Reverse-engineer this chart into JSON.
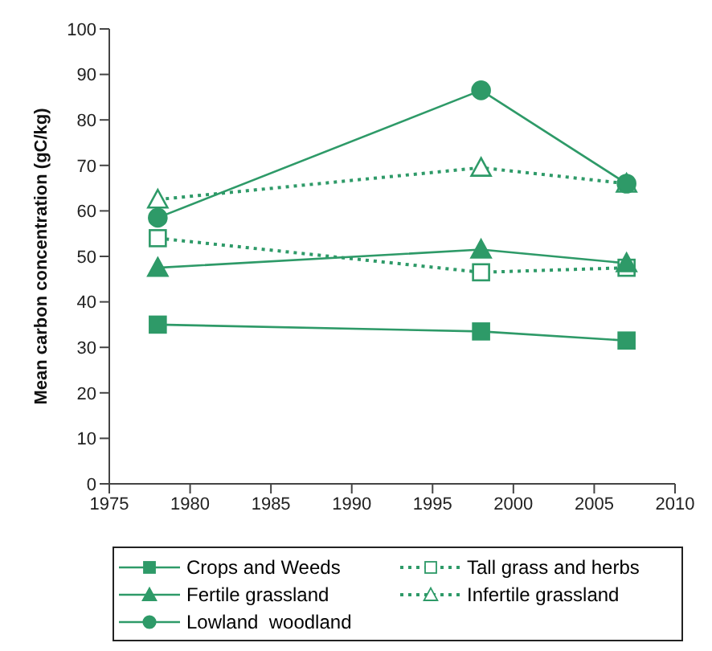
{
  "chart_data": {
    "type": "line",
    "ylabel": "Mean carbon concentration (gC/kg)",
    "x": [
      1978,
      1998,
      2007
    ],
    "xlim": [
      1975,
      2010
    ],
    "xticks": [
      1975,
      1980,
      1985,
      1990,
      1995,
      2000,
      2005,
      2010
    ],
    "ylim": [
      0,
      100
    ],
    "yticks": [
      0,
      10,
      20,
      30,
      40,
      50,
      60,
      70,
      80,
      90,
      100
    ],
    "grid": false,
    "legend": "bottom",
    "series": [
      {
        "name": "Crops and Weeds",
        "color": "#2e9a68",
        "values": [
          35,
          33.5,
          31.5
        ],
        "marker": "square",
        "line_style": "solid"
      },
      {
        "name": "Tall grass and herbs",
        "color": "#2e9a68",
        "values": [
          54,
          46.5,
          47.5
        ],
        "marker": "square",
        "line_style": "dotted"
      },
      {
        "name": "Fertile grassland",
        "color": "#2e9a68",
        "values": [
          47.5,
          51.5,
          48.5
        ],
        "marker": "triangle",
        "line_style": "solid"
      },
      {
        "name": "Infertile grassland",
        "color": "#2e9a68",
        "values": [
          62.5,
          69.5,
          66
        ],
        "marker": "triangle",
        "line_style": "dotted"
      },
      {
        "name": "Lowland  woodland",
        "color": "#2e9a68",
        "values": [
          58.5,
          86.5,
          66
        ],
        "marker": "circle",
        "line_style": "solid"
      }
    ]
  }
}
